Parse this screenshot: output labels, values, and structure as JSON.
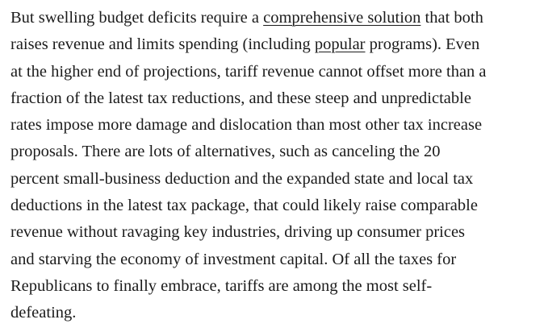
{
  "paragraph": {
    "lines": [
      [
        "But swelling budget deficits require a ",
        {
          "link": "comprehensive solution"
        },
        " that both"
      ],
      [
        "raises revenue and limits spending (including ",
        {
          "link": "popular"
        },
        " programs). Even"
      ],
      [
        "at the higher end of projections, tariff revenue cannot offset more than a"
      ],
      [
        "fraction of the latest tax reductions, and these steep and unpredictable"
      ],
      [
        "rates impose more damage and dislocation than most other tax increase"
      ],
      [
        "proposals. There are lots of alternatives, such as canceling the 20"
      ],
      [
        "percent small-business deduction and the expanded state and local tax"
      ],
      [
        "deductions in the latest tax package, that could likely raise comparable"
      ],
      [
        "revenue without ravaging key industries, driving up consumer prices"
      ],
      [
        "and starving the economy of investment capital. Of all the taxes for"
      ],
      [
        "Republicans to finally embrace, tariffs are among the most self-"
      ],
      [
        "defeating."
      ]
    ]
  }
}
